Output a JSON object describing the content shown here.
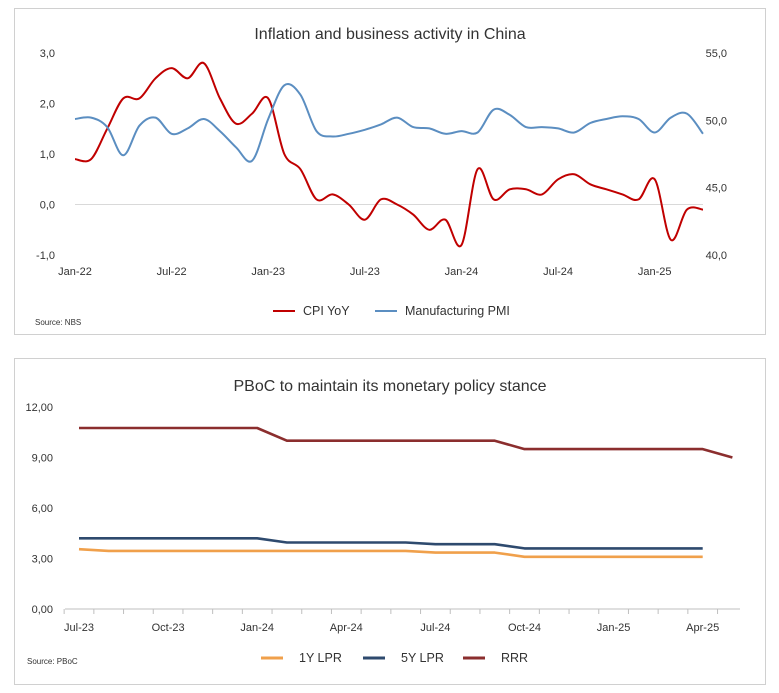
{
  "chart_data": [
    {
      "type": "line",
      "title": "Inflation and business activity in China",
      "source": "Source: NBS",
      "x_tick_labels": [
        "Jan-22",
        "Jul-22",
        "Jan-23",
        "Jul-23",
        "Jan-24",
        "Jul-24",
        "Jan-25"
      ],
      "y_left": {
        "ticks": [
          "3,0",
          "2,0",
          "1,0",
          "0,0",
          "-1,0"
        ],
        "range": [
          -1.0,
          3.0
        ]
      },
      "y_right": {
        "ticks": [
          "55,0",
          "50,0",
          "45,0",
          "40,0"
        ],
        "range": [
          40.0,
          55.0
        ]
      },
      "months": [
        "2022-01",
        "2022-02",
        "2022-03",
        "2022-04",
        "2022-05",
        "2022-06",
        "2022-07",
        "2022-08",
        "2022-09",
        "2022-10",
        "2022-11",
        "2022-12",
        "2023-01",
        "2023-02",
        "2023-03",
        "2023-04",
        "2023-05",
        "2023-06",
        "2023-07",
        "2023-08",
        "2023-09",
        "2023-10",
        "2023-11",
        "2023-12",
        "2024-01",
        "2024-02",
        "2024-03",
        "2024-04",
        "2024-05",
        "2024-06",
        "2024-07",
        "2024-08",
        "2024-09",
        "2024-10",
        "2024-11",
        "2024-12",
        "2025-01",
        "2025-02",
        "2025-03",
        "2025-04"
      ],
      "series": [
        {
          "name": "CPI YoY",
          "axis": "left",
          "color": "#c00000",
          "values": [
            0.9,
            0.9,
            1.5,
            2.1,
            2.1,
            2.5,
            2.7,
            2.5,
            2.8,
            2.1,
            1.6,
            1.8,
            2.1,
            1.0,
            0.7,
            0.1,
            0.2,
            0.0,
            -0.3,
            0.1,
            0.0,
            -0.2,
            -0.5,
            -0.3,
            -0.8,
            0.7,
            0.1,
            0.3,
            0.3,
            0.2,
            0.5,
            0.6,
            0.4,
            0.3,
            0.2,
            0.1,
            0.5,
            -0.7,
            -0.1,
            -0.1
          ]
        },
        {
          "name": "Manufacturing PMI",
          "axis": "right",
          "color": "#5b8ec1",
          "values": [
            50.1,
            50.2,
            49.5,
            47.4,
            49.6,
            50.2,
            49.0,
            49.4,
            50.1,
            49.2,
            48.0,
            47.0,
            50.1,
            52.6,
            51.9,
            49.2,
            48.8,
            49.0,
            49.3,
            49.7,
            50.2,
            49.5,
            49.4,
            49.0,
            49.2,
            49.1,
            50.8,
            50.4,
            49.5,
            49.5,
            49.4,
            49.1,
            49.8,
            50.1,
            50.3,
            50.1,
            49.1,
            50.2,
            50.5,
            49.0
          ]
        }
      ]
    },
    {
      "type": "line",
      "title": "PBoC to maintain its monetary policy stance",
      "source": "Source: PBoC",
      "x_tick_labels": [
        "Jul-23",
        "Oct-23",
        "Jan-24",
        "Apr-24",
        "Jul-24",
        "Oct-24",
        "Jan-25",
        "Apr-25"
      ],
      "y": {
        "ticks": [
          "12,00",
          "9,00",
          "6,00",
          "3,00",
          "0,00"
        ],
        "range": [
          0,
          12
        ]
      },
      "months": [
        "2023-07",
        "2023-08",
        "2023-09",
        "2023-10",
        "2023-11",
        "2023-12",
        "2024-01",
        "2024-02",
        "2024-03",
        "2024-04",
        "2024-05",
        "2024-06",
        "2024-07",
        "2024-08",
        "2024-09",
        "2024-10",
        "2024-11",
        "2024-12",
        "2025-01",
        "2025-02",
        "2025-03",
        "2025-04",
        "2025-05"
      ],
      "series": [
        {
          "name": "1Y LPR",
          "color": "#f0a04b",
          "values": [
            3.55,
            3.45,
            3.45,
            3.45,
            3.45,
            3.45,
            3.45,
            3.45,
            3.45,
            3.45,
            3.45,
            3.45,
            3.35,
            3.35,
            3.35,
            3.1,
            3.1,
            3.1,
            3.1,
            3.1,
            3.1,
            3.1
          ]
        },
        {
          "name": "5Y LPR",
          "color": "#2e4a6e",
          "values": [
            4.2,
            4.2,
            4.2,
            4.2,
            4.2,
            4.2,
            4.2,
            3.95,
            3.95,
            3.95,
            3.95,
            3.95,
            3.85,
            3.85,
            3.85,
            3.6,
            3.6,
            3.6,
            3.6,
            3.6,
            3.6,
            3.6
          ]
        },
        {
          "name": "RRR",
          "color": "#8b2e2e",
          "values": [
            10.75,
            10.75,
            10.75,
            10.75,
            10.75,
            10.75,
            10.75,
            10.0,
            10.0,
            10.0,
            10.0,
            10.0,
            10.0,
            10.0,
            10.0,
            9.5,
            9.5,
            9.5,
            9.5,
            9.5,
            9.5,
            9.5,
            9.0
          ]
        }
      ]
    }
  ]
}
